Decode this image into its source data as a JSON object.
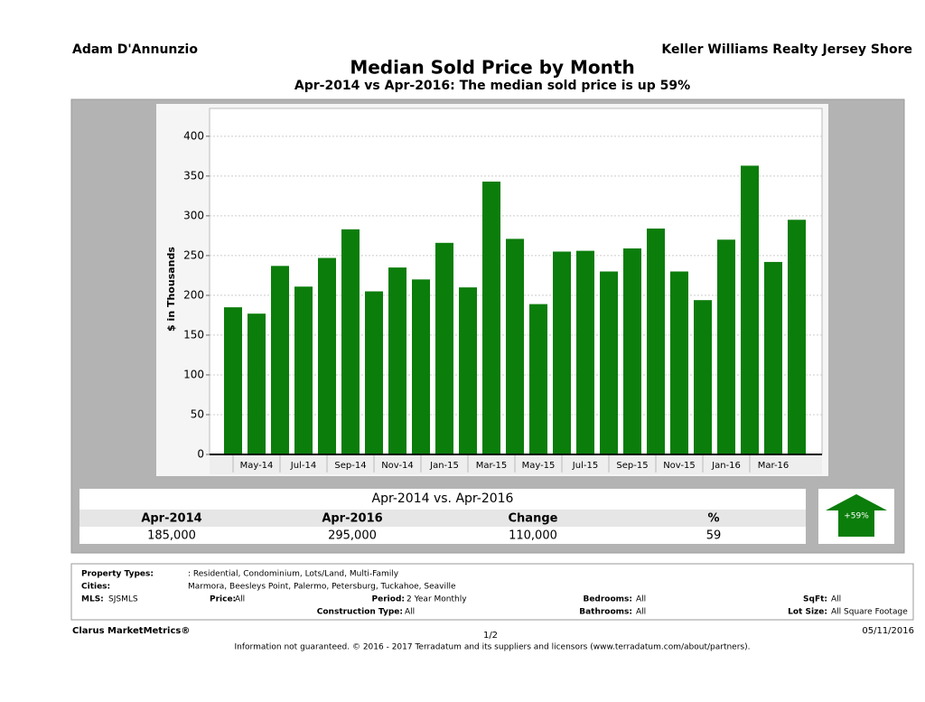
{
  "header": {
    "agent": "Adam D'Annunzio",
    "company": "Keller Williams Realty Jersey Shore"
  },
  "chart_data": {
    "type": "bar",
    "title": "Median Sold Price by Month",
    "subtitle": "Apr-2014 vs Apr-2016: The median sold price is up 59%",
    "y_label": "$ in Thousands",
    "categories": [
      null,
      "May-14",
      null,
      "Jul-14",
      null,
      "Sep-14",
      null,
      "Nov-14",
      null,
      "Jan-15",
      null,
      "Mar-15",
      null,
      "May-15",
      null,
      "Jul-15",
      null,
      "Sep-15",
      null,
      "Nov-15",
      null,
      "Jan-16",
      null,
      "Mar-16",
      null
    ],
    "values": [
      185,
      177,
      237,
      211,
      247,
      283,
      205,
      235,
      220,
      266,
      210,
      343,
      271,
      189,
      255,
      256,
      230,
      259,
      284,
      230,
      194,
      270,
      363,
      242,
      295
    ],
    "color": "#0b7d0b",
    "ylim": [
      0,
      435
    ],
    "yticks": [
      0,
      50,
      100,
      150,
      200,
      250,
      300,
      350,
      400
    ],
    "grid": true
  },
  "summary": {
    "title": "Apr-2014 vs. Apr-2016",
    "columns": [
      "Apr-2014",
      "Apr-2016",
      "Change",
      "%"
    ],
    "values": [
      "185,000",
      "295,000",
      "110,000",
      "59"
    ],
    "badge": "+59%"
  },
  "filters": {
    "property_types": {
      "label": "Property Types:",
      "value": ": Residential, Condominium, Lots/Land, Multi-Family"
    },
    "cities": {
      "label": "Cities:",
      "value": "Marmora, Beesleys Point, Palermo, Petersburg, Tuckahoe, Seaville"
    },
    "mls": {
      "label": "MLS:",
      "value": "SJSMLS"
    },
    "price": {
      "label": "Price:",
      "value": "All"
    },
    "period": {
      "label": "Period:",
      "value": "2 Year Monthly"
    },
    "bedrooms": {
      "label": "Bedrooms:",
      "value": "All"
    },
    "sqft": {
      "label": "SqFt:",
      "value": "All"
    },
    "construction": {
      "label": "Construction Type:",
      "value": "All"
    },
    "bathrooms": {
      "label": "Bathrooms:",
      "value": "All"
    },
    "lot_size": {
      "label": "Lot Size:",
      "value": "All Square Footage"
    }
  },
  "footer": {
    "brand": "Clarus MarketMetrics®",
    "page": "1/2",
    "date": "05/11/2016",
    "disclaimer": "Information not guaranteed. © 2016 - 2017 Terradatum and its suppliers and licensors (www.terradatum.com/about/partners)."
  }
}
